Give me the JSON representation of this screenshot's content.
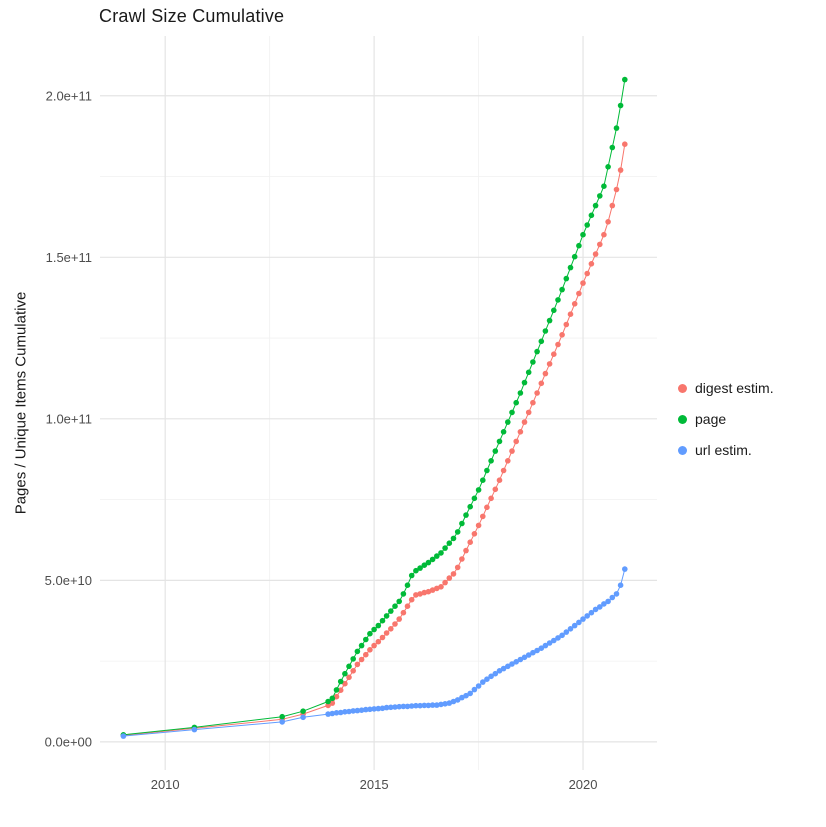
{
  "colors": {
    "background": "#ffffff",
    "title_text": "#1a1a1a",
    "tick_label": "#4d4d4d",
    "grid_major": "#e4e4e4",
    "grid_minor": "#f1f1f1"
  },
  "chart_data": {
    "type": "scatter",
    "title": "Crawl Size Cumulative",
    "xlabel": "",
    "ylabel": "Pages / Unique Items Cumulative",
    "legend_position": "right",
    "grid": true,
    "units_note": "y point values are in billions (1e9) of pages/items",
    "xlim": [
      2008.44,
      2021.77
    ],
    "ylim_billions": [
      -8.7,
      218.5
    ],
    "x_ticks": [
      {
        "v": 2010,
        "label": "2010"
      },
      {
        "v": 2015,
        "label": "2015"
      },
      {
        "v": 2020,
        "label": "2020"
      }
    ],
    "x_minor": [
      2012.5,
      2017.5
    ],
    "y_ticks": [
      {
        "v": 0,
        "label": "0.0e+00"
      },
      {
        "v": 50,
        "label": "5.0e+10"
      },
      {
        "v": 100,
        "label": "1.0e+11"
      },
      {
        "v": 150,
        "label": "1.5e+11"
      },
      {
        "v": 200,
        "label": "2.0e+11"
      }
    ],
    "y_minor": [
      25,
      75,
      125,
      175
    ],
    "series": [
      {
        "name": "digest estim.",
        "color": "#F8766D",
        "points": [
          [
            2009.0,
            2.0
          ],
          [
            2010.7,
            4.2
          ],
          [
            2012.8,
            7.0
          ],
          [
            2013.3,
            8.6
          ],
          [
            2013.9,
            11.3
          ],
          [
            2014.0,
            12.0
          ],
          [
            2014.1,
            14.0
          ],
          [
            2014.2,
            16.0
          ],
          [
            2014.3,
            18.0
          ],
          [
            2014.4,
            20.0
          ],
          [
            2014.5,
            22.0
          ],
          [
            2014.6,
            24.0
          ],
          [
            2014.7,
            25.5
          ],
          [
            2014.8,
            27.0
          ],
          [
            2014.9,
            28.5
          ],
          [
            2015.0,
            29.8
          ],
          [
            2015.1,
            31.0
          ],
          [
            2015.2,
            32.3
          ],
          [
            2015.3,
            33.7
          ],
          [
            2015.4,
            35.0
          ],
          [
            2015.5,
            36.5
          ],
          [
            2015.6,
            38.0
          ],
          [
            2015.7,
            40.0
          ],
          [
            2015.8,
            42.0
          ],
          [
            2015.9,
            44.0
          ],
          [
            2016.0,
            45.5
          ],
          [
            2016.1,
            45.8
          ],
          [
            2016.2,
            46.2
          ],
          [
            2016.3,
            46.5
          ],
          [
            2016.4,
            47.0
          ],
          [
            2016.5,
            47.5
          ],
          [
            2016.6,
            48.0
          ],
          [
            2016.7,
            49.3
          ],
          [
            2016.8,
            50.7
          ],
          [
            2016.9,
            52.0
          ],
          [
            2017.0,
            54.0
          ],
          [
            2017.1,
            56.6
          ],
          [
            2017.2,
            59.2
          ],
          [
            2017.3,
            61.8
          ],
          [
            2017.4,
            64.4
          ],
          [
            2017.5,
            67.0
          ],
          [
            2017.6,
            69.8
          ],
          [
            2017.7,
            72.6
          ],
          [
            2017.8,
            75.4
          ],
          [
            2017.9,
            78.2
          ],
          [
            2018.0,
            81.0
          ],
          [
            2018.1,
            84.0
          ],
          [
            2018.2,
            87.0
          ],
          [
            2018.3,
            90.0
          ],
          [
            2018.4,
            93.0
          ],
          [
            2018.5,
            96.0
          ],
          [
            2018.6,
            99.0
          ],
          [
            2018.7,
            102.0
          ],
          [
            2018.8,
            105.0
          ],
          [
            2018.9,
            108.0
          ],
          [
            2019.0,
            111.0
          ],
          [
            2019.1,
            114.0
          ],
          [
            2019.2,
            117.0
          ],
          [
            2019.3,
            120.0
          ],
          [
            2019.4,
            123.0
          ],
          [
            2019.5,
            126.0
          ],
          [
            2019.6,
            129.2
          ],
          [
            2019.7,
            132.4
          ],
          [
            2019.8,
            135.6
          ],
          [
            2019.9,
            138.8
          ],
          [
            2020.0,
            142.0
          ],
          [
            2020.1,
            145.0
          ],
          [
            2020.2,
            148.0
          ],
          [
            2020.3,
            151.0
          ],
          [
            2020.4,
            154.0
          ],
          [
            2020.5,
            157.0
          ],
          [
            2020.6,
            161.0
          ],
          [
            2020.7,
            166.0
          ],
          [
            2020.8,
            171.0
          ],
          [
            2020.9,
            177.0
          ],
          [
            2021.0,
            185.0
          ]
        ]
      },
      {
        "name": "page",
        "color": "#00BA38",
        "points": [
          [
            2009.0,
            2.2
          ],
          [
            2010.7,
            4.5
          ],
          [
            2012.8,
            7.8
          ],
          [
            2013.3,
            9.5
          ],
          [
            2013.9,
            12.5
          ],
          [
            2014.0,
            13.5
          ],
          [
            2014.1,
            16.1
          ],
          [
            2014.2,
            18.7
          ],
          [
            2014.3,
            21.1
          ],
          [
            2014.4,
            23.4
          ],
          [
            2014.5,
            25.7
          ],
          [
            2014.6,
            28.0
          ],
          [
            2014.7,
            29.8
          ],
          [
            2014.8,
            31.7
          ],
          [
            2014.9,
            33.5
          ],
          [
            2015.0,
            34.8
          ],
          [
            2015.1,
            36.0
          ],
          [
            2015.2,
            37.5
          ],
          [
            2015.3,
            39.0
          ],
          [
            2015.4,
            40.5
          ],
          [
            2015.5,
            42.0
          ],
          [
            2015.6,
            43.5
          ],
          [
            2015.7,
            45.8
          ],
          [
            2015.8,
            48.5
          ],
          [
            2015.9,
            51.5
          ],
          [
            2016.0,
            53.0
          ],
          [
            2016.1,
            53.8
          ],
          [
            2016.2,
            54.7
          ],
          [
            2016.3,
            55.5
          ],
          [
            2016.4,
            56.5
          ],
          [
            2016.5,
            57.5
          ],
          [
            2016.6,
            58.5
          ],
          [
            2016.7,
            60.0
          ],
          [
            2016.8,
            61.5
          ],
          [
            2016.9,
            63.0
          ],
          [
            2017.0,
            65.0
          ],
          [
            2017.1,
            67.6
          ],
          [
            2017.2,
            70.2
          ],
          [
            2017.3,
            72.8
          ],
          [
            2017.4,
            75.4
          ],
          [
            2017.5,
            78.0
          ],
          [
            2017.6,
            81.0
          ],
          [
            2017.7,
            84.0
          ],
          [
            2017.8,
            87.0
          ],
          [
            2017.9,
            90.0
          ],
          [
            2018.0,
            93.0
          ],
          [
            2018.1,
            96.0
          ],
          [
            2018.2,
            99.0
          ],
          [
            2018.3,
            102.0
          ],
          [
            2018.4,
            105.0
          ],
          [
            2018.5,
            108.0
          ],
          [
            2018.6,
            111.2
          ],
          [
            2018.7,
            114.4
          ],
          [
            2018.8,
            117.6
          ],
          [
            2018.9,
            120.8
          ],
          [
            2019.0,
            124.0
          ],
          [
            2019.1,
            127.2
          ],
          [
            2019.2,
            130.4
          ],
          [
            2019.3,
            133.6
          ],
          [
            2019.4,
            136.8
          ],
          [
            2019.5,
            140.0
          ],
          [
            2019.6,
            143.4
          ],
          [
            2019.7,
            146.8
          ],
          [
            2019.8,
            150.2
          ],
          [
            2019.9,
            153.6
          ],
          [
            2020.0,
            157.0
          ],
          [
            2020.1,
            160.0
          ],
          [
            2020.2,
            163.0
          ],
          [
            2020.3,
            166.0
          ],
          [
            2020.4,
            169.0
          ],
          [
            2020.5,
            172.0
          ],
          [
            2020.6,
            178.0
          ],
          [
            2020.7,
            184.0
          ],
          [
            2020.8,
            190.0
          ],
          [
            2020.9,
            197.0
          ],
          [
            2021.0,
            205.0
          ]
        ]
      },
      {
        "name": "url estim.",
        "color": "#619CFF",
        "points": [
          [
            2009.0,
            1.8
          ],
          [
            2010.7,
            3.8
          ],
          [
            2012.8,
            6.2
          ],
          [
            2013.3,
            7.6
          ],
          [
            2013.9,
            8.6
          ],
          [
            2014.0,
            8.8
          ],
          [
            2014.1,
            9.0
          ],
          [
            2014.2,
            9.1
          ],
          [
            2014.3,
            9.3
          ],
          [
            2014.4,
            9.4
          ],
          [
            2014.5,
            9.6
          ],
          [
            2014.6,
            9.7
          ],
          [
            2014.7,
            9.8
          ],
          [
            2014.8,
            10.0
          ],
          [
            2014.9,
            10.1
          ],
          [
            2015.0,
            10.2
          ],
          [
            2015.1,
            10.3
          ],
          [
            2015.2,
            10.4
          ],
          [
            2015.3,
            10.6
          ],
          [
            2015.4,
            10.7
          ],
          [
            2015.5,
            10.8
          ],
          [
            2015.6,
            10.9
          ],
          [
            2015.7,
            11.0
          ],
          [
            2015.8,
            11.0
          ],
          [
            2015.9,
            11.1
          ],
          [
            2016.0,
            11.2
          ],
          [
            2016.1,
            11.2
          ],
          [
            2016.2,
            11.3
          ],
          [
            2016.3,
            11.3
          ],
          [
            2016.4,
            11.4
          ],
          [
            2016.5,
            11.4
          ],
          [
            2016.6,
            11.6
          ],
          [
            2016.7,
            11.8
          ],
          [
            2016.8,
            12.0
          ],
          [
            2016.9,
            12.5
          ],
          [
            2017.0,
            13.0
          ],
          [
            2017.1,
            13.7
          ],
          [
            2017.2,
            14.3
          ],
          [
            2017.3,
            15.0
          ],
          [
            2017.4,
            16.2
          ],
          [
            2017.5,
            17.3
          ],
          [
            2017.6,
            18.5
          ],
          [
            2017.7,
            19.4
          ],
          [
            2017.8,
            20.3
          ],
          [
            2017.9,
            21.1
          ],
          [
            2018.0,
            22.0
          ],
          [
            2018.1,
            22.7
          ],
          [
            2018.2,
            23.4
          ],
          [
            2018.3,
            24.1
          ],
          [
            2018.4,
            24.8
          ],
          [
            2018.5,
            25.5
          ],
          [
            2018.6,
            26.2
          ],
          [
            2018.7,
            26.9
          ],
          [
            2018.8,
            27.6
          ],
          [
            2018.9,
            28.3
          ],
          [
            2019.0,
            29.0
          ],
          [
            2019.1,
            29.8
          ],
          [
            2019.2,
            30.6
          ],
          [
            2019.3,
            31.4
          ],
          [
            2019.4,
            32.2
          ],
          [
            2019.5,
            33.0
          ],
          [
            2019.6,
            34.0
          ],
          [
            2019.7,
            35.0
          ],
          [
            2019.8,
            36.0
          ],
          [
            2019.9,
            37.0
          ],
          [
            2020.0,
            38.0
          ],
          [
            2020.1,
            39.0
          ],
          [
            2020.2,
            40.0
          ],
          [
            2020.3,
            41.0
          ],
          [
            2020.4,
            41.8
          ],
          [
            2020.5,
            42.7
          ],
          [
            2020.6,
            43.5
          ],
          [
            2020.7,
            44.7
          ],
          [
            2020.8,
            45.8
          ],
          [
            2020.9,
            48.5
          ],
          [
            2021.0,
            53.5
          ]
        ]
      }
    ]
  }
}
